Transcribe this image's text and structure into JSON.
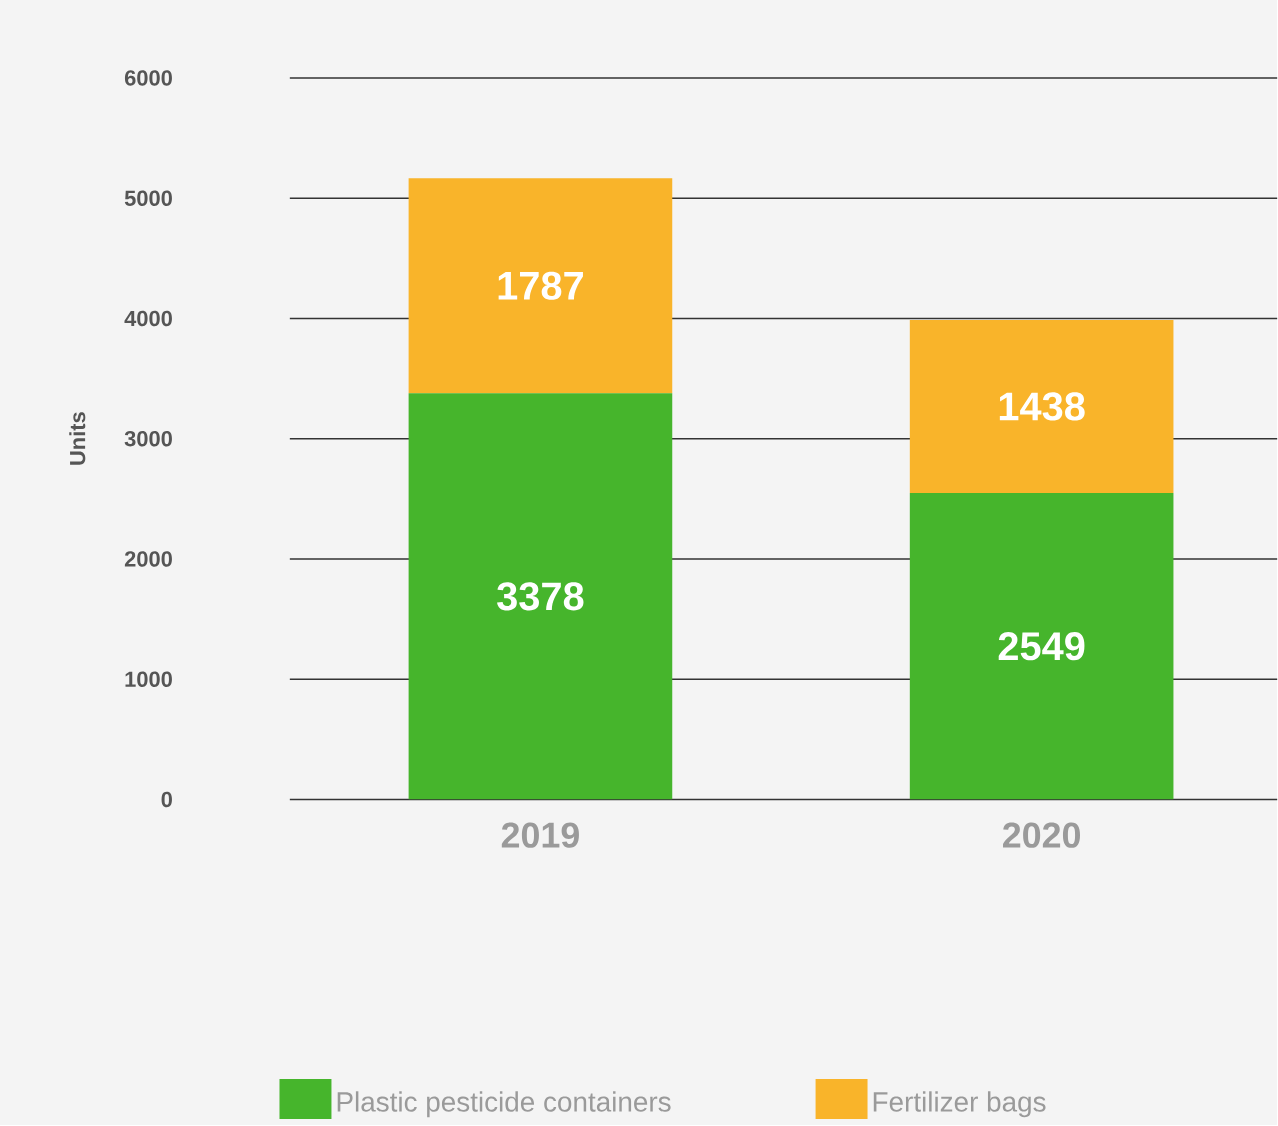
{
  "chart_data": {
    "type": "bar",
    "stacked": true,
    "ylabel": "Units",
    "categories": [
      "2019",
      "2020"
    ],
    "series": [
      {
        "name": "Plastic pesticide containers",
        "color": "#46b52c",
        "values": [
          3378,
          2549
        ]
      },
      {
        "name": "Fertilizer bags",
        "color": "#f9b42a",
        "values": [
          1787,
          1438
        ]
      }
    ],
    "ylim": [
      0,
      6000
    ],
    "yticks": [
      0,
      1000,
      2000,
      3000,
      4000,
      5000,
      6000
    ],
    "grid": "y",
    "data_labels": true,
    "legend": "bottom"
  }
}
